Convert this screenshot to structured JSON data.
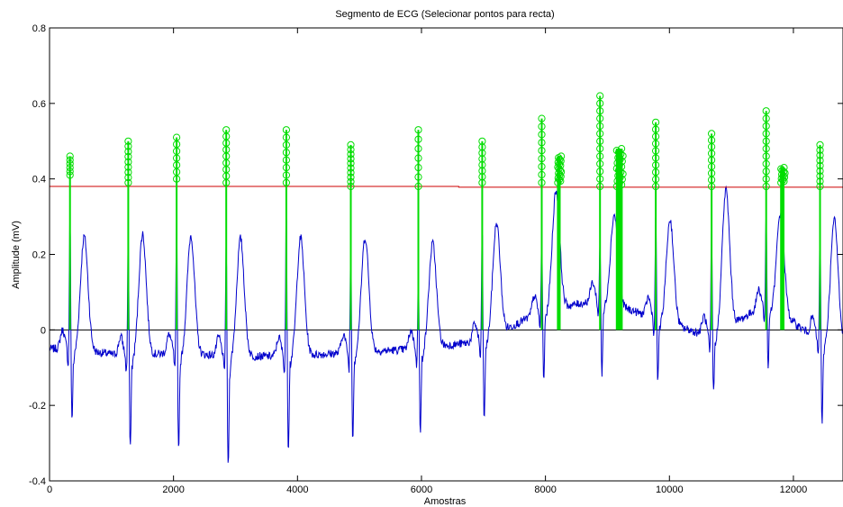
{
  "chart_data": {
    "type": "line",
    "title": "Segmento de ECG (Selecionar pontos para recta)",
    "xlabel": "Amostras",
    "ylabel": "Amplitude (mV)",
    "xlim": [
      0,
      12800
    ],
    "ylim": [
      -0.4,
      0.8
    ],
    "xticks": [
      0,
      2000,
      4000,
      6000,
      8000,
      10000,
      12000
    ],
    "xtick_labels": [
      "0",
      "2000",
      "4000",
      "6000",
      "8000",
      "10000",
      "12000"
    ],
    "yticks": [
      -0.4,
      -0.2,
      0,
      0.2,
      0.4,
      0.6,
      0.8
    ],
    "ytick_labels": [
      "-0.4",
      "-0.2",
      "0",
      "0.2",
      "0.4",
      "0.6",
      "0.8"
    ],
    "grid": false,
    "colors": {
      "ecg": "#0000cc",
      "threshold": "#cc0000",
      "baseline": "#000000",
      "selected_points": "#00dd00"
    },
    "series": [
      {
        "kind": "ecg",
        "beats": [
          {
            "r_x": 330,
            "base": -0.05,
            "r_amp": 0.33,
            "s_amp": -0.24,
            "t_amp": 0.28
          },
          {
            "r_x": 1270,
            "base": -0.07,
            "r_amp": 0.27,
            "s_amp": -0.32,
            "t_amp": 0.28
          },
          {
            "r_x": 2050,
            "base": -0.06,
            "r_amp": 0.31,
            "s_amp": -0.32,
            "t_amp": 0.28
          },
          {
            "r_x": 2850,
            "base": -0.07,
            "r_amp": 0.25,
            "s_amp": -0.37,
            "t_amp": 0.27
          },
          {
            "r_x": 3820,
            "base": -0.07,
            "r_amp": 0.35,
            "s_amp": -0.32,
            "t_amp": 0.27
          },
          {
            "r_x": 4860,
            "base": -0.06,
            "r_amp": 0.26,
            "s_amp": -0.29,
            "t_amp": 0.27
          },
          {
            "r_x": 5950,
            "base": -0.05,
            "r_amp": 0.18,
            "s_amp": -0.28,
            "t_amp": 0.25
          },
          {
            "r_x": 6980,
            "base": -0.03,
            "r_amp": 0.29,
            "s_amp": -0.25,
            "t_amp": 0.29
          },
          {
            "r_x": 7940,
            "base": 0.05,
            "r_amp": 0.27,
            "s_amp": -0.14,
            "t_amp": 0.39
          },
          {
            "r_x": 8880,
            "base": 0.08,
            "r_amp": 0.25,
            "s_amp": -0.12,
            "t_amp": 0.34
          },
          {
            "r_x": 9780,
            "base": 0.03,
            "r_amp": 0.33,
            "s_amp": -0.14,
            "t_amp": 0.33
          },
          {
            "r_x": 10680,
            "base": -0.02,
            "r_amp": 0.28,
            "s_amp": -0.17,
            "t_amp": 0.38
          },
          {
            "r_x": 11560,
            "base": 0.07,
            "r_amp": 0.33,
            "s_amp": -0.1,
            "t_amp": 0.36
          },
          {
            "r_x": 12430,
            "base": -0.03,
            "r_amp": 0.32,
            "s_amp": -0.26,
            "t_amp": 0.32
          }
        ]
      },
      {
        "kind": "threshold",
        "x": [
          0,
          6600,
          6600,
          12800
        ],
        "y": [
          0.38,
          0.38,
          0.378,
          0.378
        ]
      },
      {
        "kind": "baseline",
        "x": [
          0,
          12800
        ],
        "y": [
          0,
          0
        ]
      },
      {
        "kind": "selected_points",
        "stems": [
          {
            "x": 330,
            "y_min": 0.41,
            "y_max": 0.46,
            "count": 6,
            "width": 1
          },
          {
            "x": 1270,
            "y_min": 0.39,
            "y_max": 0.5,
            "count": 9,
            "width": 1
          },
          {
            "x": 2050,
            "y_min": 0.4,
            "y_max": 0.51,
            "count": 7,
            "width": 1
          },
          {
            "x": 2850,
            "y_min": 0.39,
            "y_max": 0.53,
            "count": 9,
            "width": 1
          },
          {
            "x": 3820,
            "y_min": 0.39,
            "y_max": 0.53,
            "count": 8,
            "width": 1
          },
          {
            "x": 4860,
            "y_min": 0.38,
            "y_max": 0.49,
            "count": 10,
            "width": 1
          },
          {
            "x": 5950,
            "y_min": 0.38,
            "y_max": 0.53,
            "count": 7,
            "width": 1
          },
          {
            "x": 6980,
            "y_min": 0.39,
            "y_max": 0.5,
            "count": 8,
            "width": 1
          },
          {
            "x": 7940,
            "y_min": 0.39,
            "y_max": 0.56,
            "count": 9,
            "width": 1
          },
          {
            "x": 8200,
            "y_min": 0.39,
            "y_max": 0.46,
            "count": 18,
            "width": 60
          },
          {
            "x": 8880,
            "y_min": 0.38,
            "y_max": 0.62,
            "count": 13,
            "width": 1
          },
          {
            "x": 9150,
            "y_min": 0.38,
            "y_max": 0.48,
            "count": 22,
            "width": 110
          },
          {
            "x": 9780,
            "y_min": 0.38,
            "y_max": 0.55,
            "count": 10,
            "width": 1
          },
          {
            "x": 10680,
            "y_min": 0.38,
            "y_max": 0.52,
            "count": 9,
            "width": 1
          },
          {
            "x": 11560,
            "y_min": 0.38,
            "y_max": 0.58,
            "count": 11,
            "width": 1
          },
          {
            "x": 11800,
            "y_min": 0.39,
            "y_max": 0.43,
            "count": 12,
            "width": 70
          },
          {
            "x": 12430,
            "y_min": 0.38,
            "y_max": 0.49,
            "count": 9,
            "width": 1
          }
        ]
      }
    ]
  }
}
